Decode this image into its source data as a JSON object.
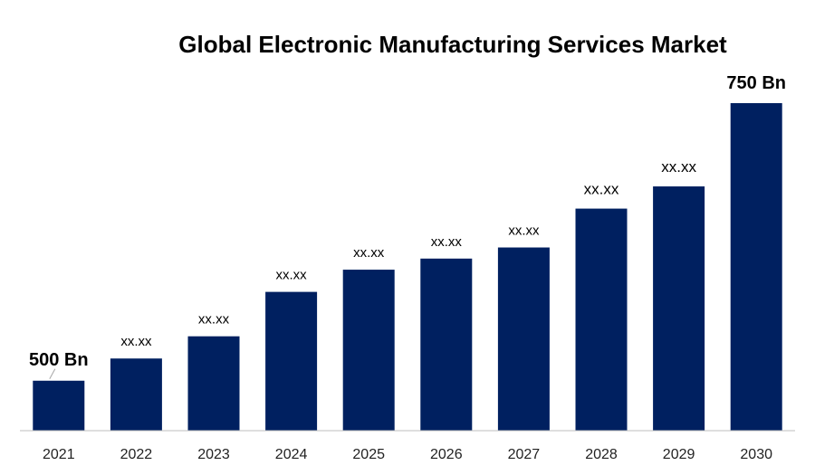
{
  "chart_data": {
    "type": "bar",
    "title": "Global Electronic Manufacturing Services Market",
    "xlabel": "",
    "ylabel": "",
    "categories": [
      "2021",
      "2022",
      "2023",
      "2024",
      "2025",
      "2026",
      "2027",
      "2028",
      "2029",
      "2030"
    ],
    "values": [
      500,
      520,
      540,
      580,
      600,
      610,
      620,
      655,
      675,
      750
    ],
    "ylim": [
      455,
      760
    ],
    "data_labels": [
      "500 Bn",
      "xx.xx",
      "xx.xx",
      "xx.xx",
      "xx.xx",
      "xx.xx",
      "xx.xx",
      "xx.xx",
      "xx.xx",
      "750 Bn"
    ],
    "bar_color": "#002060",
    "grid": false,
    "legend": "none"
  }
}
